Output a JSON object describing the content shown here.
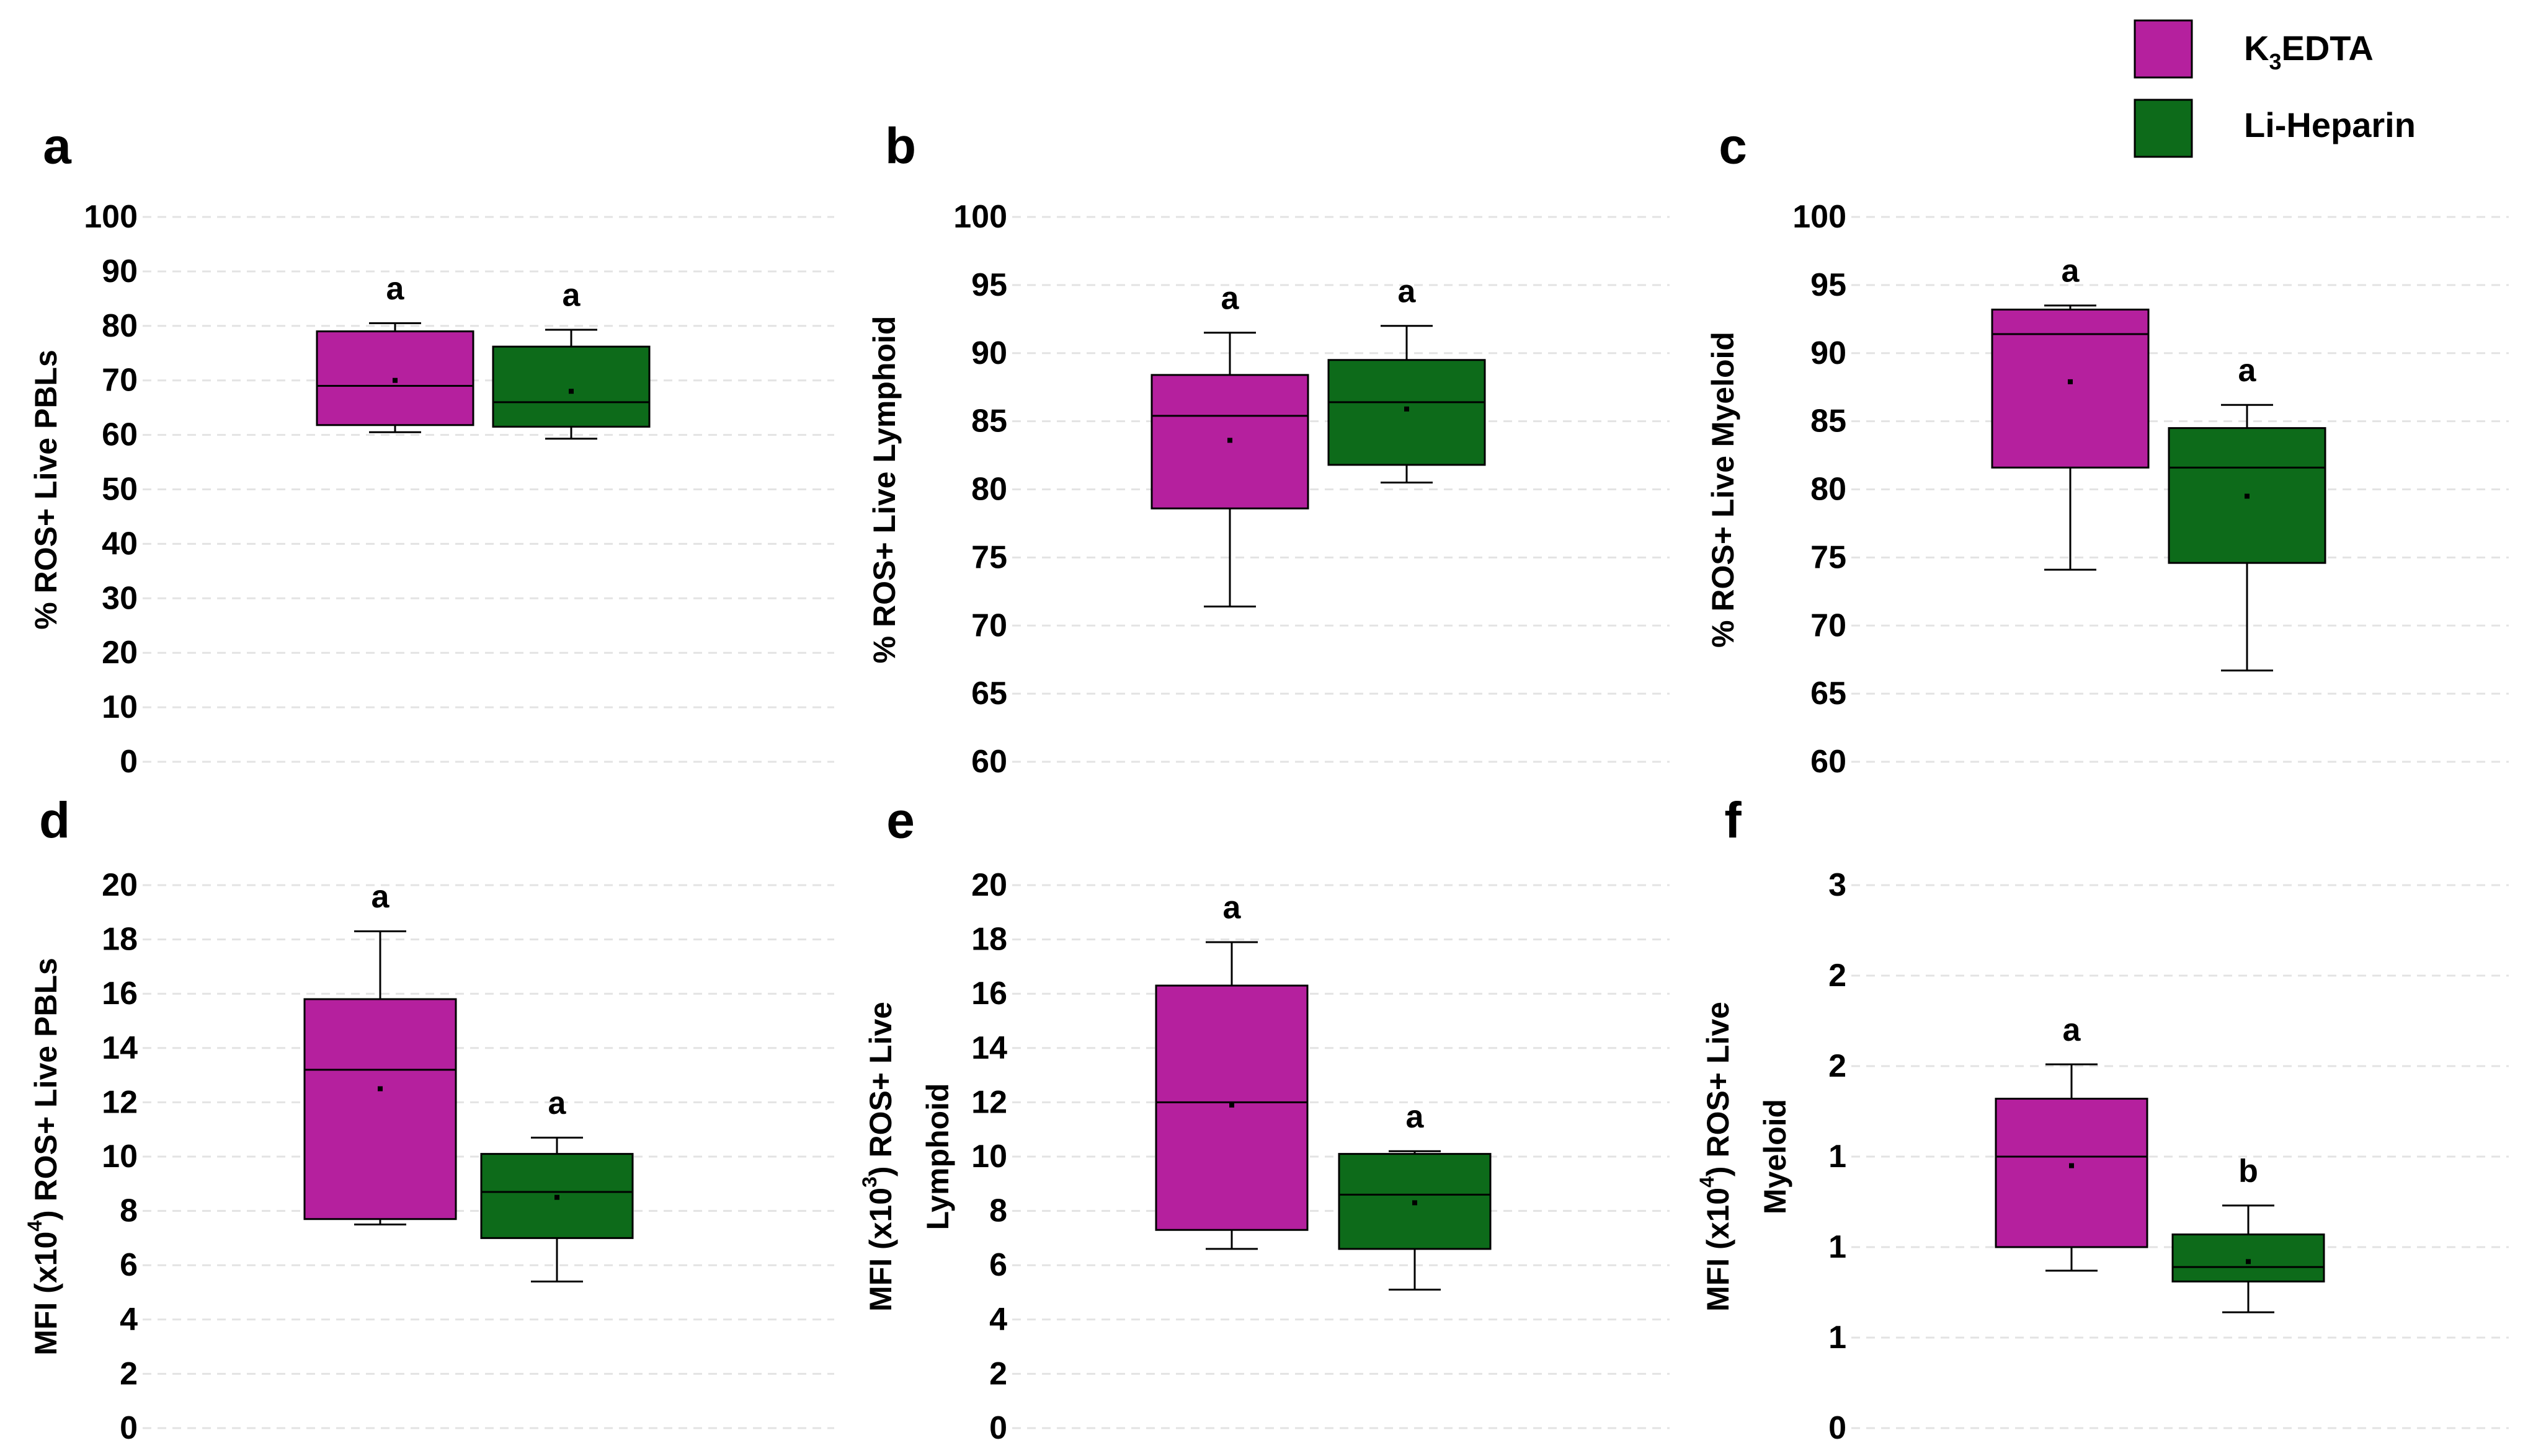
{
  "colors": {
    "k3edta": "#b5209e",
    "liheparin": "#0d6b1a",
    "whisker": "#000000",
    "grid": "#e3e3e3"
  },
  "legend": {
    "items": [
      {
        "name": "K3EDTA",
        "label_main": "K",
        "label_sub": "3",
        "label_rest": "EDTA",
        "color_key": "k3edta"
      },
      {
        "name": "Li-Heparin",
        "label_main": "Li-Heparin",
        "label_sub": "",
        "label_rest": "",
        "color_key": "liheparin"
      }
    ]
  },
  "chart_data": [
    {
      "type": "box",
      "panel": "a",
      "ylabel": "% ROS+ Live PBLs",
      "ylabel_parts": [
        {
          "t": "% ROS+ Live PBLs"
        }
      ],
      "ylim": [
        0,
        100
      ],
      "yticks": [
        0,
        10,
        20,
        30,
        40,
        50,
        60,
        70,
        80,
        90,
        100
      ],
      "ytick_labels": [
        "0",
        "10",
        "20",
        "30",
        "40",
        "50",
        "60",
        "70",
        "80",
        "90",
        "100"
      ],
      "grid": true,
      "series": [
        {
          "name": "K3EDTA",
          "whisker_low": 60.5,
          "q1": 61.8,
          "median": 69.0,
          "q3": 79.0,
          "whisker_high": 80.5,
          "mean": 70.0,
          "letter": "a"
        },
        {
          "name": "Li-Heparin",
          "whisker_low": 59.3,
          "q1": 61.5,
          "median": 66.0,
          "q3": 76.2,
          "whisker_high": 79.3,
          "mean": 68.0,
          "letter": "a"
        }
      ]
    },
    {
      "type": "box",
      "panel": "b",
      "ylabel": "% ROS+ Live Lymphoid",
      "ylabel_parts": [
        {
          "t": "% ROS+ Live Lymphoid"
        }
      ],
      "ylim": [
        60,
        100
      ],
      "yticks": [
        60,
        65,
        70,
        75,
        80,
        85,
        90,
        95,
        100
      ],
      "ytick_labels": [
        "60",
        "65",
        "70",
        "75",
        "80",
        "85",
        "90",
        "95",
        "100"
      ],
      "grid": true,
      "series": [
        {
          "name": "K3EDTA",
          "whisker_low": 71.4,
          "q1": 78.6,
          "median": 85.4,
          "q3": 88.4,
          "whisker_high": 91.5,
          "mean": 83.6,
          "letter": "a"
        },
        {
          "name": "Li-Heparin",
          "whisker_low": 80.5,
          "q1": 81.8,
          "median": 86.4,
          "q3": 89.5,
          "whisker_high": 92.0,
          "mean": 85.9,
          "letter": "a"
        }
      ]
    },
    {
      "type": "box",
      "panel": "c",
      "ylabel": "% ROS+ Live Myeloid",
      "ylabel_parts": [
        {
          "t": "% ROS+ Live Myeloid"
        }
      ],
      "ylim": [
        60,
        100
      ],
      "yticks": [
        60,
        65,
        70,
        75,
        80,
        85,
        90,
        95,
        100
      ],
      "ytick_labels": [
        "60",
        "65",
        "70",
        "75",
        "80",
        "85",
        "90",
        "95",
        "100"
      ],
      "grid": true,
      "series": [
        {
          "name": "K3EDTA",
          "whisker_low": 74.1,
          "q1": 81.6,
          "median": 91.4,
          "q3": 93.2,
          "whisker_high": 93.5,
          "mean": 87.9,
          "letter": "a"
        },
        {
          "name": "Li-Heparin",
          "whisker_low": 66.7,
          "q1": 74.6,
          "median": 81.6,
          "q3": 84.5,
          "whisker_high": 86.2,
          "mean": 79.5,
          "letter": "a"
        }
      ]
    },
    {
      "type": "box",
      "panel": "d",
      "ylabel": "MFI (x10⁴) ROS+ Live PBLs",
      "ylabel_parts": [
        {
          "t": "MFI (x10"
        },
        {
          "t": "4",
          "sup": true
        },
        {
          "t": ") ROS+ Live PBLs"
        }
      ],
      "ylim": [
        0,
        20
      ],
      "yticks": [
        0,
        2,
        4,
        6,
        8,
        10,
        12,
        14,
        16,
        18,
        20
      ],
      "ytick_labels": [
        "0",
        "2",
        "4",
        "6",
        "8",
        "10",
        "12",
        "14",
        "16",
        "18",
        "20"
      ],
      "grid": true,
      "series": [
        {
          "name": "K3EDTA",
          "whisker_low": 7.5,
          "q1": 7.7,
          "median": 13.2,
          "q3": 15.8,
          "whisker_high": 18.3,
          "mean": 12.5,
          "letter": "a"
        },
        {
          "name": "Li-Heparin",
          "whisker_low": 5.4,
          "q1": 7.0,
          "median": 8.7,
          "q3": 10.1,
          "whisker_high": 10.7,
          "mean": 8.5,
          "letter": "a"
        }
      ]
    },
    {
      "type": "box",
      "panel": "e",
      "ylabel": "MFI (x10³) ROS+ Live Lymphoid",
      "ylabel_parts": [
        {
          "t": "MFI (x10"
        },
        {
          "t": "3",
          "sup": true
        },
        {
          "t": ") ROS+ Live"
        }
      ],
      "ylabel_line2": "Lymphoid",
      "ylim": [
        0,
        20
      ],
      "yticks": [
        0,
        2,
        4,
        6,
        8,
        10,
        12,
        14,
        16,
        18,
        20
      ],
      "ytick_labels": [
        "0",
        "2",
        "4",
        "6",
        "8",
        "10",
        "12",
        "14",
        "16",
        "18",
        "20"
      ],
      "grid": true,
      "series": [
        {
          "name": "K3EDTA",
          "whisker_low": 6.6,
          "q1": 7.3,
          "median": 12.0,
          "q3": 16.3,
          "whisker_high": 17.9,
          "mean": 11.9,
          "letter": "a"
        },
        {
          "name": "Li-Heparin",
          "whisker_low": 5.1,
          "q1": 6.6,
          "median": 8.6,
          "q3": 10.1,
          "whisker_high": 10.2,
          "mean": 8.3,
          "letter": "a"
        }
      ]
    },
    {
      "type": "box",
      "panel": "f",
      "ylabel": "MFI (x10⁴) ROS+ Live Myeloid",
      "ylabel_parts": [
        {
          "t": "MFI (x10"
        },
        {
          "t": "4",
          "sup": true
        },
        {
          "t": ") ROS+ Live"
        }
      ],
      "ylabel_line2": "Myeloid",
      "ylim": [
        0,
        3
      ],
      "yticks": [
        0,
        0.5,
        1,
        1.5,
        2,
        2.5,
        3
      ],
      "ytick_labels": [
        "0",
        "1",
        "1",
        "1",
        "2",
        "2",
        "3"
      ],
      "grid": true,
      "series": [
        {
          "name": "K3EDTA",
          "whisker_low": 0.87,
          "q1": 1.0,
          "median": 1.5,
          "q3": 1.82,
          "whisker_high": 2.01,
          "mean": 1.45,
          "letter": "a"
        },
        {
          "name": "Li-Heparin",
          "whisker_low": 0.64,
          "q1": 0.81,
          "median": 0.89,
          "q3": 1.07,
          "whisker_high": 1.23,
          "mean": 0.92,
          "letter": "b"
        }
      ]
    }
  ]
}
